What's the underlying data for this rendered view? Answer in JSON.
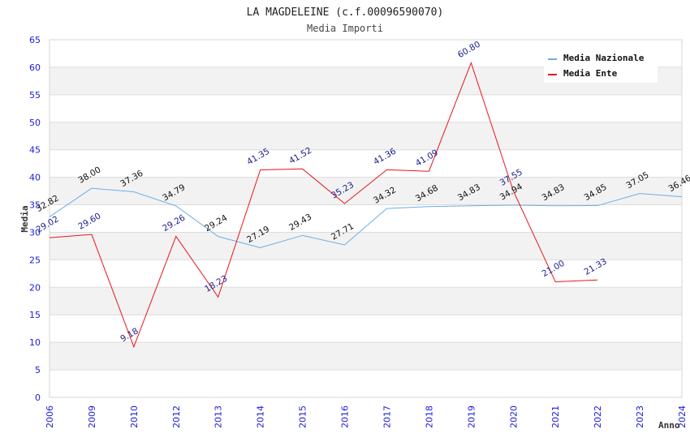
{
  "chart_data": {
    "type": "line",
    "title": "LA MAGDELEINE (c.f.00096590070)",
    "subtitle": "Media Importi",
    "xlabel": "Anno",
    "ylabel": "Media",
    "ylim": [
      0,
      65
    ],
    "yticks": [
      "0",
      "5",
      "10",
      "15",
      "20",
      "25",
      "30",
      "35",
      "40",
      "45",
      "50",
      "55",
      "60",
      "65"
    ],
    "categories": [
      "2006",
      "2009",
      "2010",
      "2012",
      "2013",
      "2014",
      "2015",
      "2016",
      "2017",
      "2018",
      "2019",
      "2020",
      "2021",
      "2022",
      "2023",
      "2024"
    ],
    "grid": "horizontal-alternating-bands",
    "legend_position": "top-right",
    "series": [
      {
        "name": "Media Nazionale",
        "color": "#6aaee8",
        "label_color": "#111111",
        "values": [
          32.82,
          38.0,
          37.36,
          34.79,
          29.24,
          27.19,
          29.43,
          27.71,
          34.32,
          34.68,
          34.83,
          34.94,
          34.83,
          34.85,
          37.05,
          36.46
        ],
        "labels": [
          "32.82",
          "38.00",
          "37.36",
          "34.79",
          "29.24",
          "27.19",
          "29.43",
          "27.71",
          "34.32",
          "34.68",
          "34.83",
          "34.94",
          "34.83",
          "34.85",
          "37.05",
          "36.46"
        ]
      },
      {
        "name": "Media Ente",
        "color": "#e8141e",
        "label_color": "#1b1b8c",
        "values": [
          29.02,
          29.6,
          9.18,
          29.26,
          18.23,
          41.35,
          41.52,
          35.23,
          41.36,
          41.09,
          60.8,
          37.55,
          21.0,
          21.33,
          null,
          null
        ],
        "labels": [
          "29.02",
          "29.60",
          "9.18",
          "29.26",
          "18.23",
          "41.35",
          "41.52",
          "35.23",
          "41.36",
          "41.09",
          "60.80",
          "37.55",
          "21.00",
          "21.33",
          null,
          null
        ]
      }
    ]
  }
}
